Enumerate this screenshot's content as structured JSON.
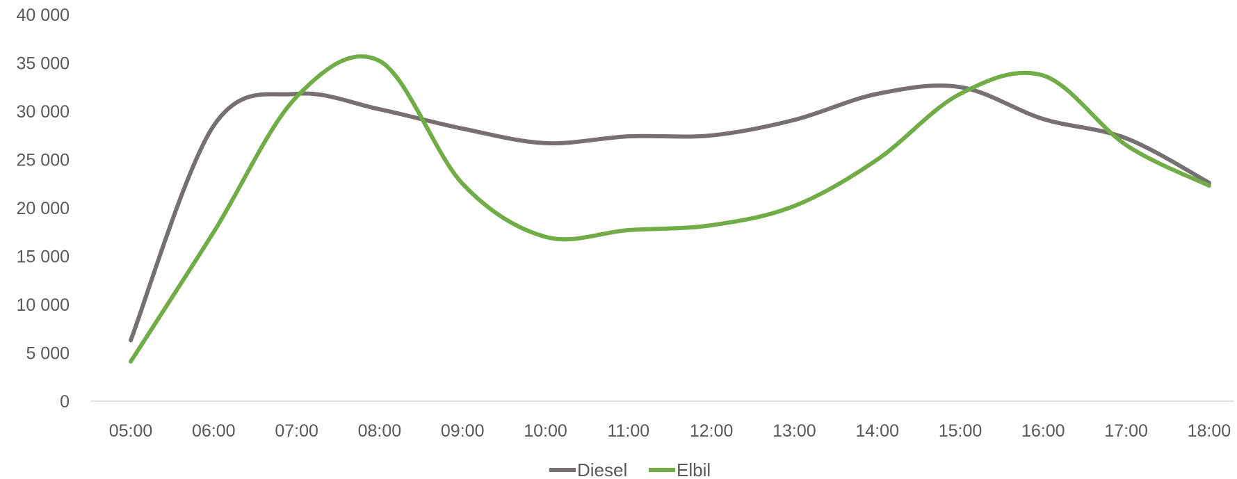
{
  "chart_data": {
    "type": "line",
    "smooth": true,
    "categories": [
      "05:00",
      "06:00",
      "07:00",
      "08:00",
      "09:00",
      "10:00",
      "11:00",
      "12:00",
      "13:00",
      "14:00",
      "15:00",
      "16:00",
      "17:00",
      "18:00"
    ],
    "series": [
      {
        "name": "Diesel",
        "color": "#767171",
        "values": [
          6300,
          28500,
          31800,
          30200,
          28200,
          26700,
          27400,
          27500,
          29100,
          31800,
          32500,
          29200,
          27200,
          22600
        ]
      },
      {
        "name": "Elbil",
        "color": "#70AD47",
        "values": [
          4100,
          17500,
          31500,
          35200,
          22500,
          17000,
          17700,
          18200,
          20200,
          25000,
          31800,
          33700,
          26500,
          22300
        ]
      }
    ],
    "yticks": [
      "0",
      "5 000",
      "10 000",
      "15 000",
      "20 000",
      "25 000",
      "30 000",
      "35 000",
      "40 000"
    ],
    "ylim": [
      0,
      40000
    ],
    "grid": false,
    "legend": "bottom",
    "title": "",
    "xlabel": "",
    "ylabel": ""
  }
}
